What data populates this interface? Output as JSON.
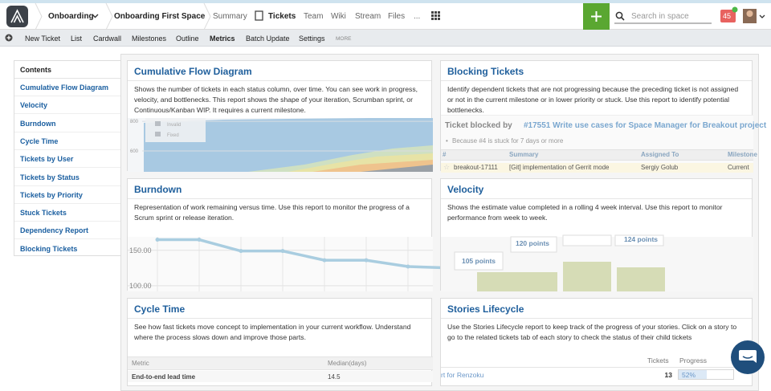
{
  "topbar": {
    "space_menu": "Onboarding",
    "space_name": "Onboarding First Space",
    "tabs": [
      "Summary",
      "Tickets",
      "Team",
      "Wiki",
      "Stream",
      "Files",
      "..."
    ],
    "active_tab": "Tickets",
    "search_placeholder": "Search in space",
    "notifications": "45"
  },
  "subnav": {
    "items": [
      "New Ticket",
      "List",
      "Cardwall",
      "Milestones",
      "Outline",
      "Metrics",
      "Batch Update",
      "Settings",
      "MORE"
    ],
    "active": "Metrics"
  },
  "sidebar": {
    "title": "Contents",
    "items": [
      "Cumulative Flow Diagram",
      "Velocity",
      "Burndown",
      "Cycle Time",
      "Tickets by User",
      "Tickets by Status",
      "Tickets by Priority",
      "Stuck Tickets",
      "Dependency Report",
      "Blocking Tickets"
    ]
  },
  "cumulative_flow": {
    "title": "Cumulative Flow Diagram",
    "description": "Shows the number of tickets in each status column, over time. You can see work in progress, velocity, and bottlenecks. This report shows the shape of your iteration, Scrumban sprint, or Continuous/Kanban WIP. It requires a current milestone.",
    "legend": [
      "Invalid",
      "Fixed"
    ],
    "ylim": [
      465,
      822
    ],
    "yticks": [
      800,
      600
    ]
  },
  "blocking": {
    "title": "Blocking Tickets",
    "description": "Identify dependent tickets that are not progressing because the preceding ticket is not assigned or not in the current milestone or in lower priority or stuck. Use this report to identify potential bottlenecks.",
    "blocked_label": "Ticket blocked by",
    "blocked_ticket": "#17551 Write use cases for Space Manager for Breakout project",
    "reason": "Because #4 is stuck for 7 days or more",
    "columns": [
      "#",
      "Summary",
      "Assigned To",
      "Milestone"
    ],
    "rows": [
      [
        "breakout-17111",
        "[Git] implementation of Gerrit mode",
        "Sergiy Golub",
        "Current"
      ]
    ]
  },
  "burndown": {
    "title": "Burndown",
    "description": "Representation of work remaining versus time. Use this report to monitor the progress of a Scrum sprint or release iteration.",
    "ylim": [
      93,
      169
    ],
    "yticks": [
      {
        "value": 150,
        "label": "150.00"
      },
      {
        "value": 100,
        "label": "100.00"
      }
    ],
    "values": [
      165,
      165,
      149,
      149,
      136,
      136,
      127,
      125
    ]
  },
  "velocity": {
    "title": "Velocity",
    "description": "Shows the estimate value completed in a rolling 4 week interval. Use this report to monitor performance from week to week.",
    "labels": [
      "105 points",
      "120 points",
      "124 points"
    ]
  },
  "cycle_time": {
    "title": "Cycle Time",
    "description": "See how fast tickets move concept to implementation in your current workflow. Understand where the process slows down and improve those parts.",
    "columns": [
      "Metric",
      "Median(days)"
    ],
    "rows": [
      [
        "End-to-end lead time",
        14.5
      ]
    ]
  },
  "stories": {
    "title": "Stories Lifecycle",
    "description": "Use the Stories Lifecycle report to keep track of the progress of your stories. Click on a story to go to the related tickets tab of each story to check the status of their child tickets",
    "columns": [
      "Tickets",
      "Progress"
    ],
    "rows": [
      {
        "name": "rt for Renzoku",
        "tickets": 13,
        "progress": 52,
        "progress_label": "52%"
      }
    ]
  }
}
